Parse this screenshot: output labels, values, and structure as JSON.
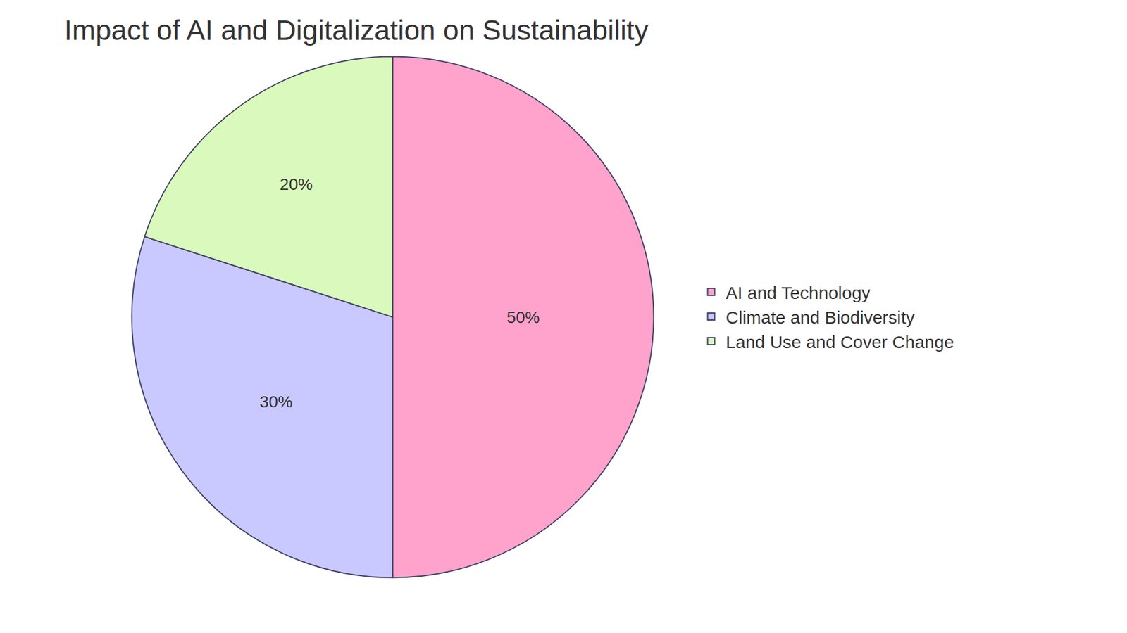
{
  "chart_data": {
    "type": "pie",
    "title": "Impact of AI and Digitalization on Sustainability",
    "categories": [
      "AI and Technology",
      "Climate and Biodiversity",
      "Land Use and Cover Change"
    ],
    "values": [
      50,
      30,
      20
    ],
    "value_labels": [
      "50%",
      "30%",
      "20%"
    ],
    "colors": [
      "#ffa3cd",
      "#c9c9ff",
      "#dafabd"
    ],
    "data_labels": true,
    "legend": "right"
  }
}
